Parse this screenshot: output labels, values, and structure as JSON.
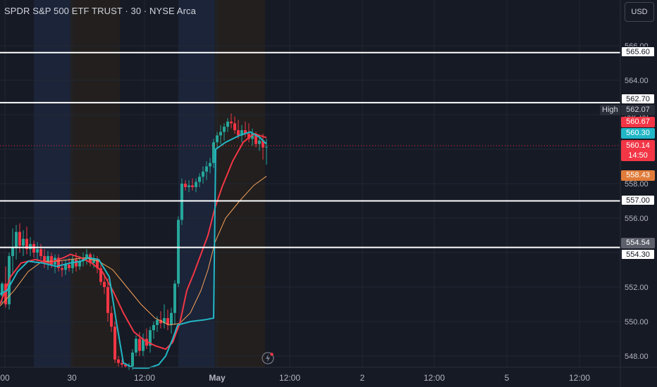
{
  "header": {
    "title": "SPDR S&P 500 ETF TRUST · 30 · NYSE Arca",
    "currency_button": "USD"
  },
  "price_axis": {
    "ticks": [
      "566.00",
      "564.00",
      "562.00",
      "560.00",
      "558.00",
      "556.00",
      "554.00",
      "552.00",
      "550.00",
      "548.00"
    ],
    "tick_values": [
      566,
      564,
      562,
      560,
      558,
      556,
      554,
      552,
      550,
      548
    ]
  },
  "time_axis": {
    "labels": [
      "00",
      "30",
      "12:00",
      "May",
      "12:00",
      "2",
      "12:00",
      "5",
      "12:00"
    ]
  },
  "horizontal_lines": [
    {
      "value": 565.6,
      "label": "565.60"
    },
    {
      "value": 562.7,
      "label": "562.70"
    },
    {
      "value": 557.0,
      "label": "557.00"
    },
    {
      "value": 554.3,
      "label": "554.30"
    }
  ],
  "price_tags": {
    "high_text": "High",
    "high_value": "562.07",
    "ma_red": "560.67",
    "ma_teal": "560.30",
    "last_price": "560.14",
    "countdown": "14:50",
    "ma_orange": "558.43",
    "prev_level": "554.54"
  },
  "colors": {
    "background": "#161a25",
    "up": "#26a69a",
    "down": "#f23645",
    "ma_teal": "#22b7c6",
    "ma_red": "#f23645",
    "ma_orange": "#f7a15a",
    "session_blue": "#1d2a44",
    "session_brown": "#2a2722"
  },
  "icons": {
    "flash": "lightning-bolt-icon"
  }
}
